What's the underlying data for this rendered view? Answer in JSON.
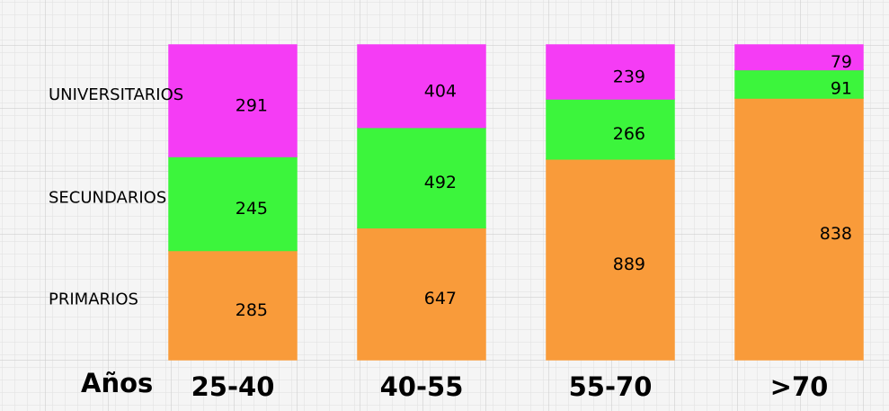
{
  "chart_data": {
    "type": "bar",
    "stacking": "percent",
    "x_label": "Años",
    "categories": [
      "25-40",
      "40-55",
      "55-70",
      ">70"
    ],
    "series": [
      {
        "name": "PRIMARIOS",
        "color": "#f99b3a",
        "values": [
          285,
          647,
          889,
          838
        ]
      },
      {
        "name": "SECUNDARIOS",
        "color": "#3cf53c",
        "values": [
          245,
          492,
          266,
          91
        ]
      },
      {
        "name": "UNIVERSITARIOS",
        "color": "#f53cf5",
        "values": [
          291,
          404,
          239,
          79
        ]
      }
    ]
  }
}
